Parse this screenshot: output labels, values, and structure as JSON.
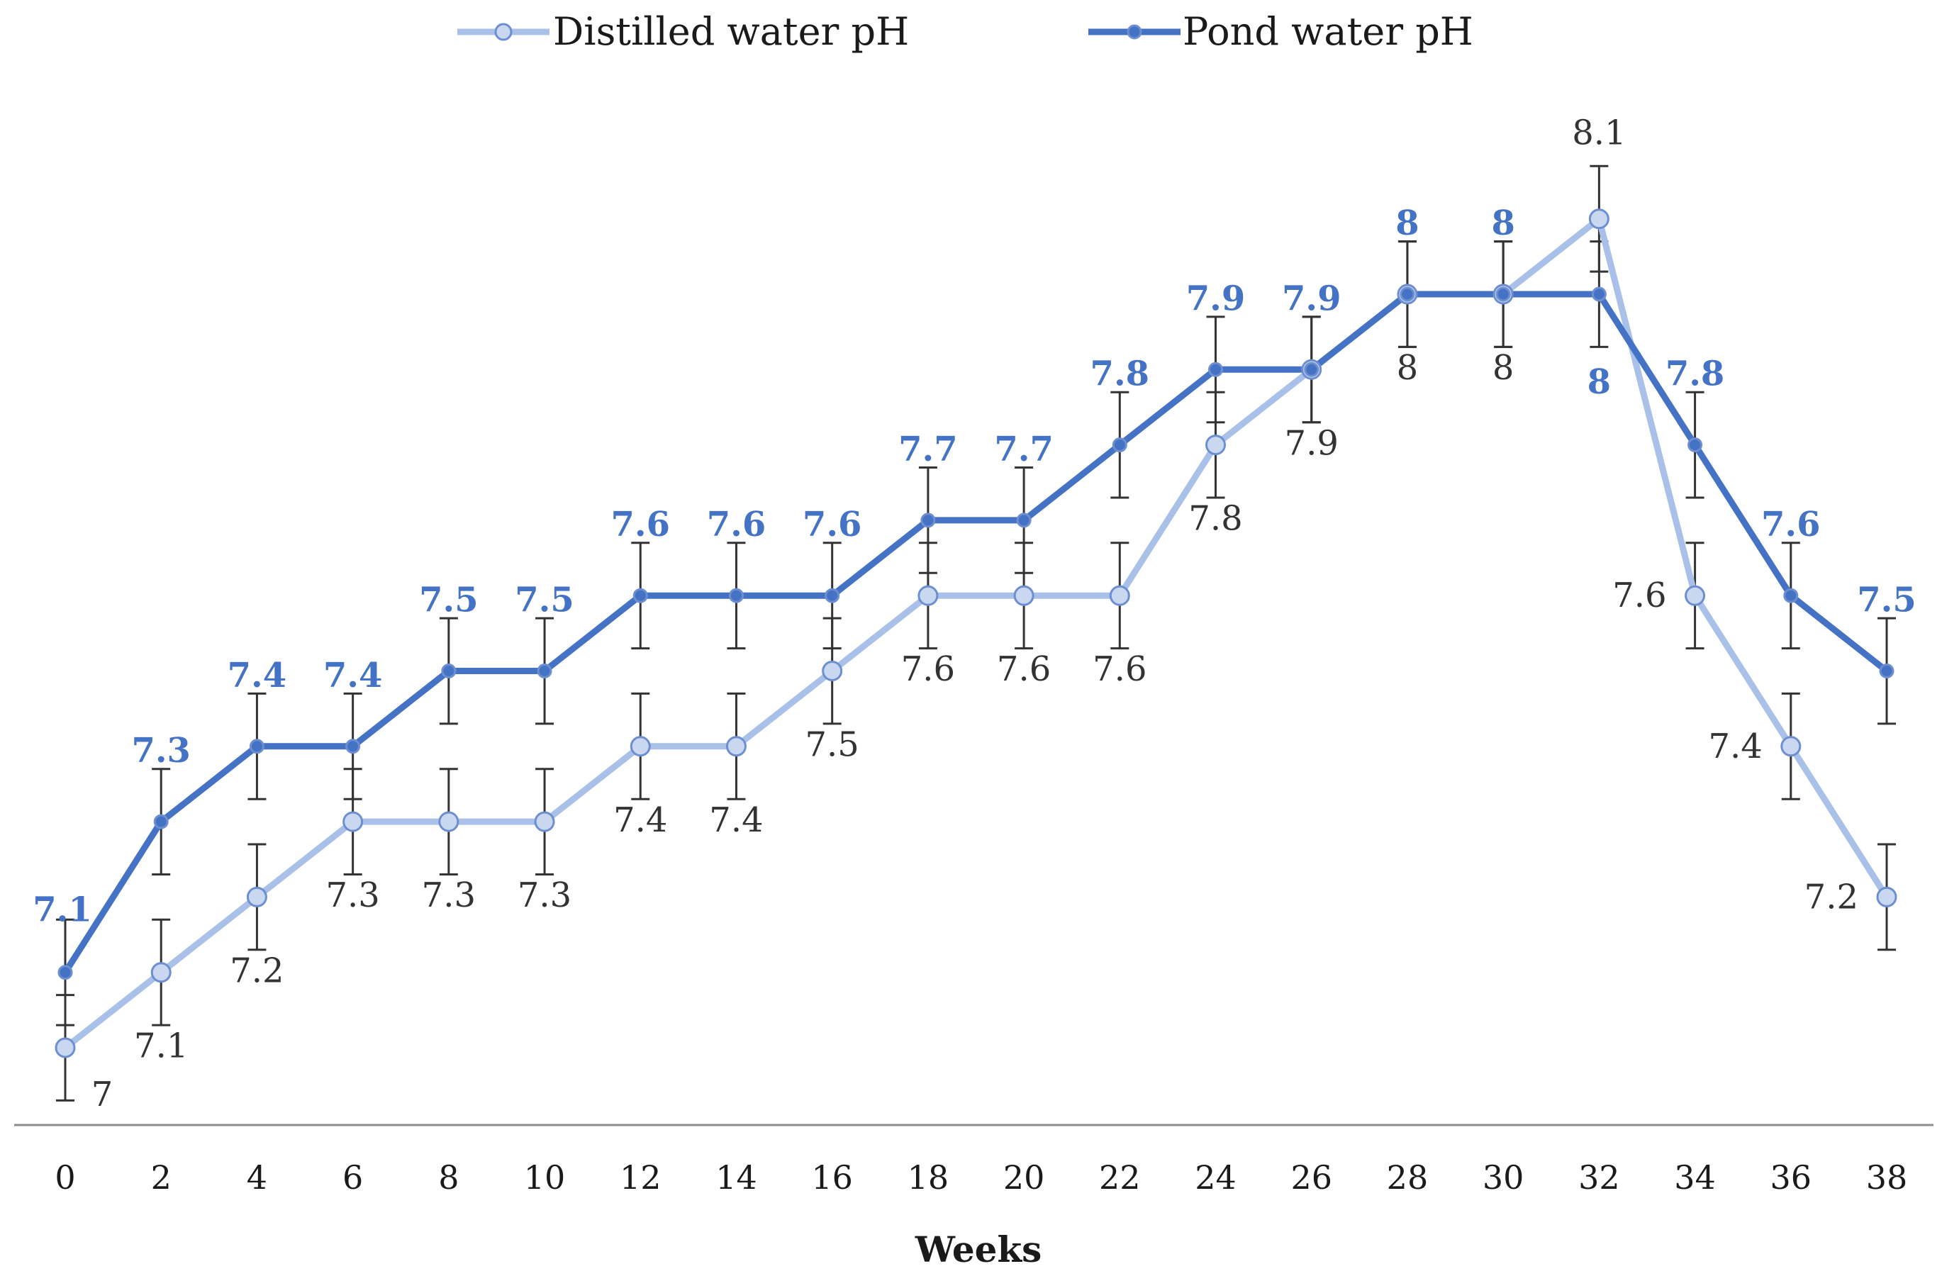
{
  "chart_data": {
    "type": "line",
    "title": "",
    "xlabel": "Weeks",
    "ylabel": "",
    "x": [
      0,
      2,
      4,
      6,
      8,
      10,
      12,
      14,
      16,
      18,
      20,
      22,
      24,
      26,
      28,
      30,
      32,
      34,
      36,
      38
    ],
    "x_tick_labels": [
      "0",
      "2",
      "4",
      "6",
      "8",
      "10",
      "12",
      "14",
      "16",
      "18",
      "20",
      "22",
      "24",
      "26",
      "28",
      "30",
      "32",
      "34",
      "36",
      "38"
    ],
    "ylim": [
      6.9,
      8.3
    ],
    "grid": false,
    "legend_position": "top-center",
    "error_bar": 0.07,
    "series": [
      {
        "name": "Distilled water pH",
        "color": "#a9c1e8",
        "marker_fill": "#c9d8f0",
        "marker_stroke": "#6d8fd0",
        "values": [
          7,
          7.1,
          7.2,
          7.3,
          7.3,
          7.3,
          7.4,
          7.4,
          7.5,
          7.6,
          7.6,
          7.6,
          7.8,
          7.9,
          8,
          8,
          8.1,
          7.6,
          7.4,
          7.2
        ],
        "data_labels": [
          "7",
          "7.1",
          "7.2",
          "7.3",
          "7.3",
          "7.3",
          "7.4",
          "7.4",
          "7.5",
          "7.6",
          "7.6",
          "7.6",
          "7.8",
          "7.9",
          "8",
          "8",
          "8.1",
          "7.6",
          "7.4",
          "7.2"
        ]
      },
      {
        "name": "Pond water pH",
        "color": "#4472c4",
        "marker_fill": "#4472c4",
        "marker_stroke": "#6d8fd0",
        "values": [
          7.1,
          7.3,
          7.4,
          7.4,
          7.5,
          7.5,
          7.6,
          7.6,
          7.6,
          7.7,
          7.7,
          7.8,
          7.9,
          7.9,
          8,
          8,
          8,
          7.8,
          7.6,
          7.5
        ],
        "data_labels": [
          "7.1",
          "7.3",
          "7.4",
          "7.4",
          "7.5",
          "7.5",
          "7.6",
          "7.6",
          "7.6",
          "7.7",
          "7.7",
          "7.8",
          "7.9",
          "7.9",
          "8",
          "8",
          "8",
          "7.8",
          "7.6",
          "7.5"
        ]
      }
    ]
  }
}
